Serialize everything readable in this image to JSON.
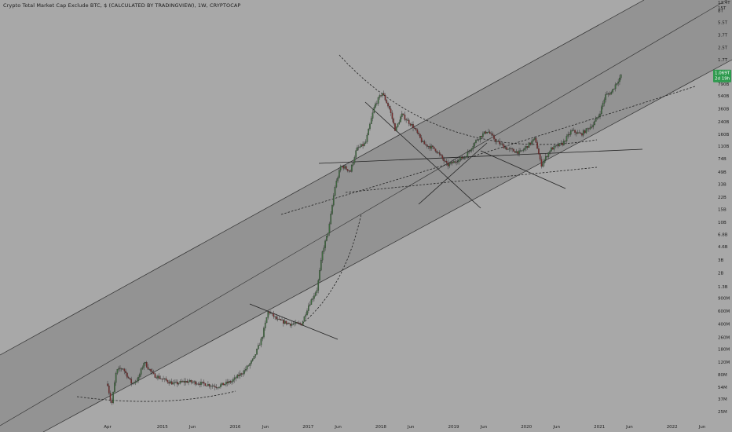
{
  "header": {
    "symbol_title": "Crypto Total Market Cap Exclude BTC, $ (CALCULATED BY TRADINGVIEW), 1W, CRYPTOCAP"
  },
  "colors": {
    "background": "#a8a8a8",
    "channel_fill": "#939393",
    "line": "#2e2e2e",
    "candle_up": "#3f6b3f",
    "candle_down": "#7a2d2d",
    "price_tag": "#2e9a4e"
  },
  "chart_data": {
    "type": "candlestick",
    "interval": "1W",
    "y_scale": "log",
    "grid": false,
    "x_ticks": [
      "Apr",
      "2015",
      "Jun",
      "2016",
      "Jun",
      "2017",
      "Jun",
      "2018",
      "Jun",
      "2019",
      "Jun",
      "2020",
      "Jun",
      "2021",
      "Jun",
      "2022",
      "Jun"
    ],
    "x_tick_dates": [
      "2014-04",
      "2015-01",
      "2015-06",
      "2016-01",
      "2016-06",
      "2017-01",
      "2017-06",
      "2018-01",
      "2018-06",
      "2019-01",
      "2019-06",
      "2020-01",
      "2020-06",
      "2021-01",
      "2021-06",
      "2022-01",
      "2022-06"
    ],
    "y_ticks": [
      "11.4T",
      "15T",
      "8T",
      "5.5T",
      "3.7T",
      "2.5T",
      "1.7T",
      "1.1T",
      "790B",
      "540B",
      "360B",
      "240B",
      "160B",
      "110B",
      "74B",
      "49B",
      "33B",
      "22B",
      "15B",
      "10B",
      "6.8B",
      "4.6B",
      "3B",
      "2B",
      "1.3B",
      "900M",
      "600M",
      "400M",
      "260M",
      "180M",
      "120M",
      "80M",
      "54M",
      "37M",
      "25M"
    ],
    "y_tick_values": [
      11400000000000,
      15000000000000,
      8000000000000,
      5500000000000,
      3700000000000,
      2500000000000,
      1700000000000,
      1100000000000,
      790000000000,
      540000000000,
      360000000000,
      240000000000,
      160000000000,
      110000000000,
      74000000000,
      49000000000,
      33000000000,
      22000000000,
      15000000000,
      10000000000,
      6800000000,
      4600000000,
      3000000000,
      2000000000,
      1300000000,
      900000000,
      600000000,
      400000000,
      260000000,
      180000000,
      120000000,
      80000000,
      54000000,
      37000000,
      25000000
    ],
    "current_price": {
      "value": "1.069T",
      "countdown": "2d 19h"
    },
    "price_path": [
      [
        "2014-04-01",
        60000000
      ],
      [
        "2014-04-20",
        30000000
      ],
      [
        "2014-05-15",
        90000000
      ],
      [
        "2014-06-15",
        100000000
      ],
      [
        "2014-08-01",
        60000000
      ],
      [
        "2014-09-01",
        70000000
      ],
      [
        "2014-10-01",
        120000000
      ],
      [
        "2014-11-15",
        80000000
      ],
      [
        "2015-01-01",
        70000000
      ],
      [
        "2015-03-01",
        60000000
      ],
      [
        "2015-05-01",
        65000000
      ],
      [
        "2015-08-01",
        60000000
      ],
      [
        "2015-10-01",
        55000000
      ],
      [
        "2015-12-15",
        65000000
      ],
      [
        "2016-02-15",
        90000000
      ],
      [
        "2016-04-01",
        130000000
      ],
      [
        "2016-05-15",
        260000000
      ],
      [
        "2016-06-15",
        600000000
      ],
      [
        "2016-08-01",
        450000000
      ],
      [
        "2016-10-01",
        400000000
      ],
      [
        "2016-12-01",
        400000000
      ],
      [
        "2017-01-01",
        700000000
      ],
      [
        "2017-02-15",
        1200000000
      ],
      [
        "2017-03-15",
        4000000000
      ],
      [
        "2017-04-15",
        8000000000
      ],
      [
        "2017-05-15",
        30000000000
      ],
      [
        "2017-06-15",
        60000000000
      ],
      [
        "2017-08-01",
        50000000000
      ],
      [
        "2017-09-01",
        100000000000
      ],
      [
        "2017-10-15",
        120000000000
      ],
      [
        "2017-12-01",
        400000000000
      ],
      [
        "2018-01-08",
        600000000000
      ],
      [
        "2018-02-15",
        350000000000
      ],
      [
        "2018-03-15",
        180000000000
      ],
      [
        "2018-04-15",
        300000000000
      ],
      [
        "2018-06-15",
        200000000000
      ],
      [
        "2018-08-01",
        120000000000
      ],
      [
        "2018-10-01",
        100000000000
      ],
      [
        "2018-12-01",
        60000000000
      ],
      [
        "2019-01-15",
        70000000000
      ],
      [
        "2019-03-01",
        80000000000
      ],
      [
        "2019-05-01",
        140000000000
      ],
      [
        "2019-06-20",
        180000000000
      ],
      [
        "2019-08-01",
        130000000000
      ],
      [
        "2019-10-01",
        100000000000
      ],
      [
        "2019-12-01",
        90000000000
      ],
      [
        "2020-02-15",
        140000000000
      ],
      [
        "2020-03-15",
        60000000000
      ],
      [
        "2020-05-01",
        100000000000
      ],
      [
        "2020-07-01",
        120000000000
      ],
      [
        "2020-08-15",
        180000000000
      ],
      [
        "2020-10-01",
        160000000000
      ],
      [
        "2020-12-01",
        220000000000
      ],
      [
        "2021-01-01",
        300000000000
      ],
      [
        "2021-02-01",
        550000000000
      ],
      [
        "2021-03-01",
        600000000000
      ],
      [
        "2021-04-01",
        850000000000
      ],
      [
        "2021-04-25",
        1069000000000
      ]
    ]
  }
}
